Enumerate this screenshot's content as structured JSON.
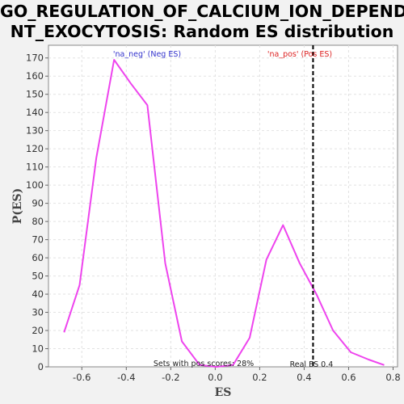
{
  "chart_data": {
    "type": "line",
    "title_line1": "GO_REGULATION_OF_CALCIUM_ION_DEPENDE",
    "title_line2": "NT_EXOCYTOSIS: Random ES distribution",
    "xlabel": "ES",
    "ylabel": "P(ES)",
    "xlim": [
      -0.75,
      0.82
    ],
    "ylim": [
      0,
      177
    ],
    "x_ticks": [
      -0.6,
      -0.4,
      -0.2,
      0.0,
      0.2,
      0.4,
      0.6,
      0.8
    ],
    "x_tick_labels": [
      "-0.6",
      "-0.4",
      "-0.2",
      "0.0",
      "0.2",
      "0.4",
      "0.6",
      "0.8"
    ],
    "y_ticks": [
      0,
      10,
      20,
      30,
      40,
      50,
      60,
      70,
      80,
      90,
      100,
      110,
      120,
      130,
      140,
      150,
      160,
      170
    ],
    "y_tick_labels": [
      "0",
      "10",
      "20",
      "30",
      "40",
      "50",
      "60",
      "70",
      "80",
      "90",
      "100",
      "110",
      "120",
      "130",
      "140",
      "150",
      "160",
      "170"
    ],
    "grid": true,
    "series": [
      {
        "color": "#ee44ee",
        "x": [
          -0.68,
          -0.61,
          -0.535,
          -0.455,
          -0.38,
          -0.305,
          -0.225,
          -0.15,
          -0.07,
          0.005,
          0.08,
          0.155,
          0.23,
          0.305,
          0.38,
          0.455,
          0.53,
          0.61,
          0.69,
          0.76
        ],
        "y": [
          19,
          45,
          115,
          169,
          156,
          144,
          57,
          14,
          1,
          0,
          1,
          16,
          59,
          78,
          57,
          40,
          20,
          8,
          4,
          1
        ]
      }
    ],
    "real_es": {
      "x": 0.44,
      "label": "Real ES 0.4",
      "color": "#000000"
    },
    "annotations": {
      "neg_label": "'na_neg' (Neg ES)",
      "neg_color": "#3333cc",
      "pos_label": "'na_pos' (Pos ES)",
      "pos_color": "#dd2222",
      "pos_scores_label": "Sets with pos scores: 28%"
    }
  }
}
